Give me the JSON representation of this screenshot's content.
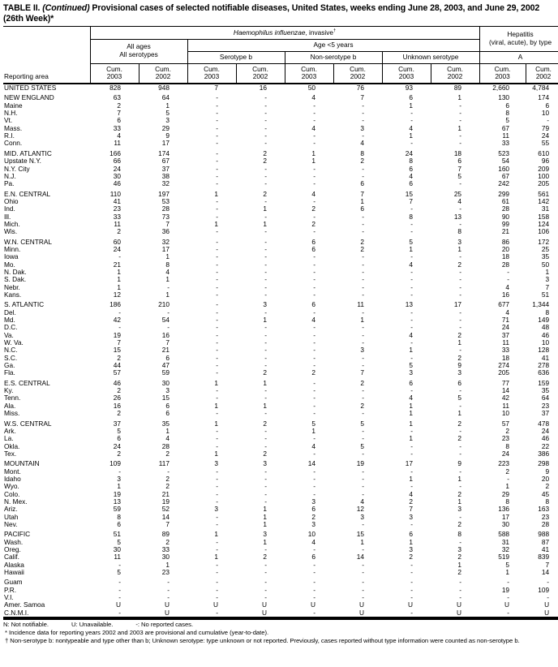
{
  "title": {
    "label": "TABLE II.",
    "continued": "(Continued)",
    "rest": "Provisional cases of selected notifiable diseases, United States, weeks ending June 28, 2003, and June 29, 2002",
    "line2": "(26th Week)*"
  },
  "header": {
    "reporting_area": "Reporting area",
    "group1_italic": "Haemophilus influenzae",
    "group1_rest": ", invasive",
    "group1_sup": "†",
    "hepatitis_line1": "Hepatitis",
    "hepatitis_line2": "(viral, acute), by type",
    "all_ages": "All ages",
    "all_serotypes": "All serotypes",
    "age_under5": "Age <5 years",
    "serotype_b": "Serotype b",
    "non_serotype_b": "Non-serotype b",
    "unknown_serotype": "Unknown serotype",
    "hep_a": "A",
    "cum": "Cum.",
    "y2003": "2003",
    "y2002": "2002"
  },
  "rows": [
    {
      "area": "UNITED STATES",
      "kind": "total",
      "gap": false,
      "v": [
        "828",
        "948",
        "7",
        "16",
        "50",
        "76",
        "93",
        "89",
        "2,660",
        "4,784"
      ]
    },
    {
      "area": "NEW ENGLAND",
      "kind": "region",
      "gap": true,
      "v": [
        "63",
        "64",
        "-",
        "-",
        "4",
        "7",
        "6",
        "1",
        "130",
        "174"
      ]
    },
    {
      "area": "Maine",
      "kind": "state",
      "gap": false,
      "v": [
        "2",
        "1",
        "-",
        "-",
        "-",
        "-",
        "1",
        "-",
        "6",
        "6"
      ]
    },
    {
      "area": "N.H.",
      "kind": "state",
      "gap": false,
      "v": [
        "7",
        "5",
        "-",
        "-",
        "-",
        "-",
        "-",
        "-",
        "8",
        "10"
      ]
    },
    {
      "area": "Vt.",
      "kind": "state",
      "gap": false,
      "v": [
        "6",
        "3",
        "-",
        "-",
        "-",
        "-",
        "-",
        "-",
        "5",
        "-"
      ]
    },
    {
      "area": "Mass.",
      "kind": "state",
      "gap": false,
      "v": [
        "33",
        "29",
        "-",
        "-",
        "4",
        "3",
        "4",
        "1",
        "67",
        "79"
      ]
    },
    {
      "area": "R.I.",
      "kind": "state",
      "gap": false,
      "v": [
        "4",
        "9",
        "-",
        "-",
        "-",
        "-",
        "1",
        "-",
        "11",
        "24"
      ]
    },
    {
      "area": "Conn.",
      "kind": "state",
      "gap": false,
      "v": [
        "11",
        "17",
        "-",
        "-",
        "-",
        "4",
        "-",
        "-",
        "33",
        "55"
      ]
    },
    {
      "area": "MID. ATLANTIC",
      "kind": "region",
      "gap": true,
      "v": [
        "166",
        "174",
        "-",
        "2",
        "1",
        "8",
        "24",
        "18",
        "523",
        "610"
      ]
    },
    {
      "area": "Upstate N.Y.",
      "kind": "state",
      "gap": false,
      "v": [
        "66",
        "67",
        "-",
        "2",
        "1",
        "2",
        "8",
        "6",
        "54",
        "96"
      ]
    },
    {
      "area": "N.Y. City",
      "kind": "state",
      "gap": false,
      "v": [
        "24",
        "37",
        "-",
        "-",
        "-",
        "-",
        "6",
        "7",
        "160",
        "209"
      ]
    },
    {
      "area": "N.J.",
      "kind": "state",
      "gap": false,
      "v": [
        "30",
        "38",
        "-",
        "-",
        "-",
        "-",
        "4",
        "5",
        "67",
        "100"
      ]
    },
    {
      "area": "Pa.",
      "kind": "state",
      "gap": false,
      "v": [
        "46",
        "32",
        "-",
        "-",
        "-",
        "6",
        "6",
        "-",
        "242",
        "205"
      ]
    },
    {
      "area": "E.N. CENTRAL",
      "kind": "region",
      "gap": true,
      "v": [
        "110",
        "197",
        "1",
        "2",
        "4",
        "7",
        "15",
        "25",
        "299",
        "561"
      ]
    },
    {
      "area": "Ohio",
      "kind": "state",
      "gap": false,
      "v": [
        "41",
        "53",
        "-",
        "-",
        "-",
        "1",
        "7",
        "4",
        "61",
        "142"
      ]
    },
    {
      "area": "Ind.",
      "kind": "state",
      "gap": false,
      "v": [
        "23",
        "28",
        "-",
        "1",
        "2",
        "6",
        "-",
        "-",
        "28",
        "31"
      ]
    },
    {
      "area": "Ill.",
      "kind": "state",
      "gap": false,
      "v": [
        "33",
        "73",
        "-",
        "-",
        "-",
        "-",
        "8",
        "13",
        "90",
        "158"
      ]
    },
    {
      "area": "Mich.",
      "kind": "state",
      "gap": false,
      "v": [
        "11",
        "7",
        "1",
        "1",
        "2",
        "-",
        "-",
        "-",
        "99",
        "124"
      ]
    },
    {
      "area": "Wis.",
      "kind": "state",
      "gap": false,
      "v": [
        "2",
        "36",
        "-",
        "-",
        "-",
        "-",
        "-",
        "8",
        "21",
        "106"
      ]
    },
    {
      "area": "W.N. CENTRAL",
      "kind": "region",
      "gap": true,
      "v": [
        "60",
        "32",
        "-",
        "-",
        "6",
        "2",
        "5",
        "3",
        "86",
        "172"
      ]
    },
    {
      "area": "Minn.",
      "kind": "state",
      "gap": false,
      "v": [
        "24",
        "17",
        "-",
        "-",
        "6",
        "2",
        "1",
        "1",
        "20",
        "25"
      ]
    },
    {
      "area": "Iowa",
      "kind": "state",
      "gap": false,
      "v": [
        "-",
        "1",
        "-",
        "-",
        "-",
        "-",
        "-",
        "-",
        "18",
        "35"
      ]
    },
    {
      "area": "Mo.",
      "kind": "state",
      "gap": false,
      "v": [
        "21",
        "8",
        "-",
        "-",
        "-",
        "-",
        "4",
        "2",
        "28",
        "50"
      ]
    },
    {
      "area": "N. Dak.",
      "kind": "state",
      "gap": false,
      "v": [
        "1",
        "4",
        "-",
        "-",
        "-",
        "-",
        "-",
        "-",
        "-",
        "1"
      ]
    },
    {
      "area": "S. Dak.",
      "kind": "state",
      "gap": false,
      "v": [
        "1",
        "1",
        "-",
        "-",
        "-",
        "-",
        "-",
        "-",
        "-",
        "3"
      ]
    },
    {
      "area": "Nebr.",
      "kind": "state",
      "gap": false,
      "v": [
        "1",
        "-",
        "-",
        "-",
        "-",
        "-",
        "-",
        "-",
        "4",
        "7"
      ]
    },
    {
      "area": "Kans.",
      "kind": "state",
      "gap": false,
      "v": [
        "12",
        "1",
        "-",
        "-",
        "-",
        "-",
        "-",
        "-",
        "16",
        "51"
      ]
    },
    {
      "area": "S. ATLANTIC",
      "kind": "region",
      "gap": true,
      "v": [
        "186",
        "210",
        "-",
        "3",
        "6",
        "11",
        "13",
        "17",
        "677",
        "1,344"
      ]
    },
    {
      "area": "Del.",
      "kind": "state",
      "gap": false,
      "v": [
        "-",
        "-",
        "-",
        "-",
        "-",
        "-",
        "-",
        "-",
        "4",
        "8"
      ]
    },
    {
      "area": "Md.",
      "kind": "state",
      "gap": false,
      "v": [
        "42",
        "54",
        "-",
        "1",
        "4",
        "1",
        "-",
        "-",
        "71",
        "149"
      ]
    },
    {
      "area": "D.C.",
      "kind": "state",
      "gap": false,
      "v": [
        "-",
        "-",
        "-",
        "-",
        "-",
        "-",
        "-",
        "-",
        "24",
        "48"
      ]
    },
    {
      "area": "Va.",
      "kind": "state",
      "gap": false,
      "v": [
        "19",
        "16",
        "-",
        "-",
        "-",
        "-",
        "4",
        "2",
        "37",
        "46"
      ]
    },
    {
      "area": "W. Va.",
      "kind": "state",
      "gap": false,
      "v": [
        "7",
        "7",
        "-",
        "-",
        "-",
        "-",
        "-",
        "1",
        "11",
        "10"
      ]
    },
    {
      "area": "N.C.",
      "kind": "state",
      "gap": false,
      "v": [
        "15",
        "21",
        "-",
        "-",
        "-",
        "3",
        "1",
        "-",
        "33",
        "128"
      ]
    },
    {
      "area": "S.C.",
      "kind": "state",
      "gap": false,
      "v": [
        "2",
        "6",
        "-",
        "-",
        "-",
        "-",
        "-",
        "2",
        "18",
        "41"
      ]
    },
    {
      "area": "Ga.",
      "kind": "state",
      "gap": false,
      "v": [
        "44",
        "47",
        "-",
        "-",
        "-",
        "-",
        "5",
        "9",
        "274",
        "278"
      ]
    },
    {
      "area": "Fla.",
      "kind": "state",
      "gap": false,
      "v": [
        "57",
        "59",
        "-",
        "2",
        "2",
        "7",
        "3",
        "3",
        "205",
        "636"
      ]
    },
    {
      "area": "E.S. CENTRAL",
      "kind": "region",
      "gap": true,
      "v": [
        "46",
        "30",
        "1",
        "1",
        "-",
        "2",
        "6",
        "6",
        "77",
        "159"
      ]
    },
    {
      "area": "Ky.",
      "kind": "state",
      "gap": false,
      "v": [
        "2",
        "3",
        "-",
        "-",
        "-",
        "-",
        "-",
        "-",
        "14",
        "35"
      ]
    },
    {
      "area": "Tenn.",
      "kind": "state",
      "gap": false,
      "v": [
        "26",
        "15",
        "-",
        "-",
        "-",
        "-",
        "4",
        "5",
        "42",
        "64"
      ]
    },
    {
      "area": "Ala.",
      "kind": "state",
      "gap": false,
      "v": [
        "16",
        "6",
        "1",
        "1",
        "-",
        "2",
        "1",
        "-",
        "11",
        "23"
      ]
    },
    {
      "area": "Miss.",
      "kind": "state",
      "gap": false,
      "v": [
        "2",
        "6",
        "-",
        "-",
        "-",
        "-",
        "1",
        "1",
        "10",
        "37"
      ]
    },
    {
      "area": "W.S. CENTRAL",
      "kind": "region",
      "gap": true,
      "v": [
        "37",
        "35",
        "1",
        "2",
        "5",
        "5",
        "1",
        "2",
        "57",
        "478"
      ]
    },
    {
      "area": "Ark.",
      "kind": "state",
      "gap": false,
      "v": [
        "5",
        "1",
        "-",
        "-",
        "1",
        "-",
        "-",
        "-",
        "2",
        "24"
      ]
    },
    {
      "area": "La.",
      "kind": "state",
      "gap": false,
      "v": [
        "6",
        "4",
        "-",
        "-",
        "-",
        "-",
        "1",
        "2",
        "23",
        "46"
      ]
    },
    {
      "area": "Okla.",
      "kind": "state",
      "gap": false,
      "v": [
        "24",
        "28",
        "-",
        "-",
        "4",
        "5",
        "-",
        "-",
        "8",
        "22"
      ]
    },
    {
      "area": "Tex.",
      "kind": "state",
      "gap": false,
      "v": [
        "2",
        "2",
        "1",
        "2",
        "-",
        "-",
        "-",
        "-",
        "24",
        "386"
      ]
    },
    {
      "area": "MOUNTAIN",
      "kind": "region",
      "gap": true,
      "v": [
        "109",
        "117",
        "3",
        "3",
        "14",
        "19",
        "17",
        "9",
        "223",
        "298"
      ]
    },
    {
      "area": "Mont.",
      "kind": "state",
      "gap": false,
      "v": [
        "-",
        "-",
        "-",
        "-",
        "-",
        "-",
        "-",
        "-",
        "2",
        "9"
      ]
    },
    {
      "area": "Idaho",
      "kind": "state",
      "gap": false,
      "v": [
        "3",
        "2",
        "-",
        "-",
        "-",
        "-",
        "1",
        "1",
        "-",
        "20"
      ]
    },
    {
      "area": "Wyo.",
      "kind": "state",
      "gap": false,
      "v": [
        "1",
        "2",
        "-",
        "-",
        "-",
        "-",
        "-",
        "-",
        "1",
        "2"
      ]
    },
    {
      "area": "Colo.",
      "kind": "state",
      "gap": false,
      "v": [
        "19",
        "21",
        "-",
        "-",
        "-",
        "-",
        "4",
        "2",
        "29",
        "45"
      ]
    },
    {
      "area": "N. Mex.",
      "kind": "state",
      "gap": false,
      "v": [
        "13",
        "19",
        "-",
        "-",
        "3",
        "4",
        "2",
        "1",
        "8",
        "8"
      ]
    },
    {
      "area": "Ariz.",
      "kind": "state",
      "gap": false,
      "v": [
        "59",
        "52",
        "3",
        "1",
        "6",
        "12",
        "7",
        "3",
        "136",
        "163"
      ]
    },
    {
      "area": "Utah",
      "kind": "state",
      "gap": false,
      "v": [
        "8",
        "14",
        "-",
        "1",
        "2",
        "3",
        "3",
        "-",
        "17",
        "23"
      ]
    },
    {
      "area": "Nev.",
      "kind": "state",
      "gap": false,
      "v": [
        "6",
        "7",
        "-",
        "1",
        "3",
        "-",
        "-",
        "2",
        "30",
        "28"
      ]
    },
    {
      "area": "PACIFIC",
      "kind": "region",
      "gap": true,
      "v": [
        "51",
        "89",
        "1",
        "3",
        "10",
        "15",
        "6",
        "8",
        "588",
        "988"
      ]
    },
    {
      "area": "Wash.",
      "kind": "state",
      "gap": false,
      "v": [
        "5",
        "2",
        "-",
        "1",
        "4",
        "1",
        "1",
        "-",
        "31",
        "87"
      ]
    },
    {
      "area": "Oreg.",
      "kind": "state",
      "gap": false,
      "v": [
        "30",
        "33",
        "-",
        "-",
        "-",
        "-",
        "3",
        "3",
        "32",
        "41"
      ]
    },
    {
      "area": "Calif.",
      "kind": "state",
      "gap": false,
      "v": [
        "11",
        "30",
        "1",
        "2",
        "6",
        "14",
        "2",
        "2",
        "519",
        "839"
      ]
    },
    {
      "area": "Alaska",
      "kind": "state",
      "gap": false,
      "v": [
        "-",
        "1",
        "-",
        "-",
        "-",
        "-",
        "-",
        "1",
        "5",
        "7"
      ]
    },
    {
      "area": "Hawaii",
      "kind": "state",
      "gap": false,
      "v": [
        "5",
        "23",
        "-",
        "-",
        "-",
        "-",
        "-",
        "2",
        "1",
        "14"
      ]
    },
    {
      "area": "Guam",
      "kind": "territory",
      "gap": true,
      "v": [
        "-",
        "-",
        "-",
        "-",
        "-",
        "-",
        "-",
        "-",
        "-",
        "-"
      ]
    },
    {
      "area": "P.R.",
      "kind": "territory",
      "gap": false,
      "v": [
        "-",
        "-",
        "-",
        "-",
        "-",
        "-",
        "-",
        "-",
        "19",
        "109"
      ]
    },
    {
      "area": "V.I.",
      "kind": "territory",
      "gap": false,
      "v": [
        "-",
        "-",
        "-",
        "-",
        "-",
        "-",
        "-",
        "-",
        "-",
        "-"
      ]
    },
    {
      "area": "Amer. Samoa",
      "kind": "territory",
      "gap": false,
      "v": [
        "U",
        "U",
        "U",
        "U",
        "U",
        "U",
        "U",
        "U",
        "U",
        "U"
      ]
    },
    {
      "area": "C.N.M.I.",
      "kind": "territory",
      "gap": false,
      "v": [
        "-",
        "U",
        "-",
        "U",
        "-",
        "U",
        "-",
        "U",
        "-",
        "U"
      ]
    }
  ],
  "footnotes": {
    "legend": [
      "N: Not notifiable.",
      "U: Unavailable.",
      "-: No reported cases."
    ],
    "star": "* Incidence data for reporting years 2002 and 2003 are provisional and cumulative (year-to-date).",
    "dagger": "† Non-serotype b: nontypeable and type other than b; Unknown serotype: type unknown or not reported. Previously, cases reported without type information were counted as non-serotype b."
  }
}
